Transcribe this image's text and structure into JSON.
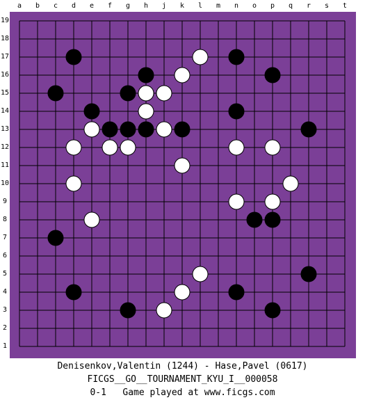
{
  "board": {
    "size": 19,
    "columns": [
      "a",
      "b",
      "c",
      "d",
      "e",
      "f",
      "g",
      "h",
      "j",
      "k",
      "l",
      "m",
      "n",
      "o",
      "p",
      "q",
      "r",
      "s",
      "t"
    ],
    "rows": [
      "19",
      "18",
      "17",
      "16",
      "15",
      "14",
      "13",
      "12",
      "11",
      "10",
      "9",
      "8",
      "7",
      "6",
      "5",
      "4",
      "3",
      "2",
      "1"
    ],
    "colors": {
      "background": "#7b3f97",
      "line": "#000000",
      "black_stone": "#000000",
      "white_stone": "#ffffff"
    },
    "black_stones": [
      "d17",
      "n17",
      "h16",
      "p16",
      "c15",
      "g15",
      "e14",
      "n14",
      "f13",
      "g13",
      "h13",
      "k13",
      "r13",
      "o8",
      "p8",
      "c7",
      "r5",
      "d4",
      "n4",
      "g3",
      "p3"
    ],
    "white_stones": [
      "l17",
      "k16",
      "h15",
      "j15",
      "h14",
      "e13",
      "j13",
      "d12",
      "f12",
      "g12",
      "n12",
      "p12",
      "k11",
      "d10",
      "q10",
      "n9",
      "p9",
      "e8",
      "l5",
      "k4",
      "j3"
    ]
  },
  "footer": {
    "players": "Denisenkov,Valentin (1244) - Hase,Pavel (0617)",
    "event": "FICGS__GO__TOURNAMENT_KYU_I__000058",
    "result_line": "0-1   Game played at www.ficgs.com"
  }
}
